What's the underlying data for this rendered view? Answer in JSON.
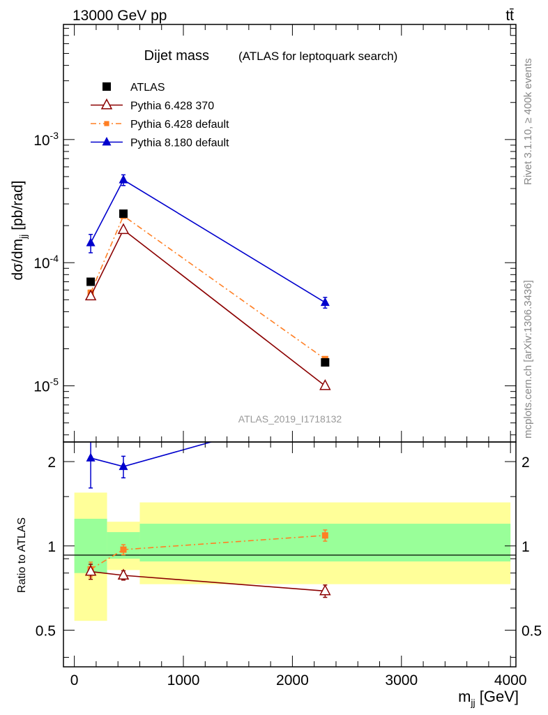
{
  "header": {
    "left": "13000 GeV pp",
    "right": "tt̄"
  },
  "side_labels": {
    "rivet": "Rivet 3.1.10, ≥ 400k events",
    "mcplots": "mcplots.cern.ch [arXiv:1306.3436]"
  },
  "chart_data": [
    {
      "type": "line",
      "title": "Dijet mass",
      "subtitle": "(ATLAS for leptoquark search)",
      "watermark": "ATLAS_2019_I1718132",
      "ylabel": "dσ/dm_jj [pb/rad]",
      "yscale": "log",
      "xlim": [
        -100,
        4050
      ],
      "ylim": [
        3.5e-06,
        0.0086
      ],
      "ytick_labels": [
        "10^-5",
        "10^-4",
        "10^-3"
      ],
      "legend": "top-left",
      "series": [
        {
          "name": "ATLAS",
          "style": "data",
          "color": "#000000",
          "x": [
            150,
            450,
            2300
          ],
          "y": [
            7e-05,
            0.00025,
            1.55e-05
          ]
        },
        {
          "name": "Pythia 6.428 370",
          "style": "open-triangle",
          "color": "#8b0000",
          "x": [
            150,
            450,
            2300
          ],
          "y": [
            5.35e-05,
            0.000185,
            1e-05
          ]
        },
        {
          "name": "Pythia 6.428 default",
          "style": "square-dashdot",
          "color": "#ff7f24",
          "x": [
            150,
            450,
            2300
          ],
          "y": [
            5.7e-05,
            0.00024,
            1.65e-05
          ]
        },
        {
          "name": "Pythia 8.180 default",
          "style": "filled-triangle",
          "color": "#0000cd",
          "x": [
            150,
            450,
            2300
          ],
          "y": [
            0.000145,
            0.00047,
            4.75e-05
          ]
        }
      ]
    },
    {
      "type": "line",
      "ylabel": "Ratio to ATLAS",
      "xlabel": "m_jj [GeV]",
      "xlim": [
        -100,
        4050
      ],
      "ylim": [
        0.37,
        2.35
      ],
      "xtick_labels": [
        "0",
        "1000",
        "2000",
        "3000",
        "4000"
      ],
      "ytick_labels": [
        "0.5",
        "1",
        "2"
      ],
      "bands": [
        {
          "x0": 0,
          "x1": 300,
          "yellow": [
            0.54,
            1.55
          ],
          "green": [
            0.8,
            1.25
          ]
        },
        {
          "x0": 300,
          "x1": 600,
          "yellow": [
            0.82,
            1.22
          ],
          "green": [
            0.9,
            1.12
          ]
        },
        {
          "x0": 600,
          "x1": 4000,
          "yellow": [
            0.73,
            1.43
          ],
          "green": [
            0.88,
            1.2
          ]
        }
      ],
      "series": [
        {
          "name": "Pythia 6.428 370",
          "x": [
            150,
            450,
            2300
          ],
          "y": [
            0.81,
            0.785,
            0.69
          ],
          "err": [
            0.05,
            0.03,
            0.035
          ]
        },
        {
          "name": "Pythia 6.428 default",
          "x": [
            150,
            450,
            2300
          ],
          "y": [
            0.825,
            0.97,
            1.09
          ],
          "err": [
            0.05,
            0.04,
            0.05
          ]
        },
        {
          "name": "Pythia 8.180 default",
          "x": [
            150,
            450,
            1500
          ],
          "y": [
            2.06,
            1.92,
            2.5
          ],
          "err": [
            0.45,
            0.17,
            0
          ]
        }
      ]
    }
  ]
}
